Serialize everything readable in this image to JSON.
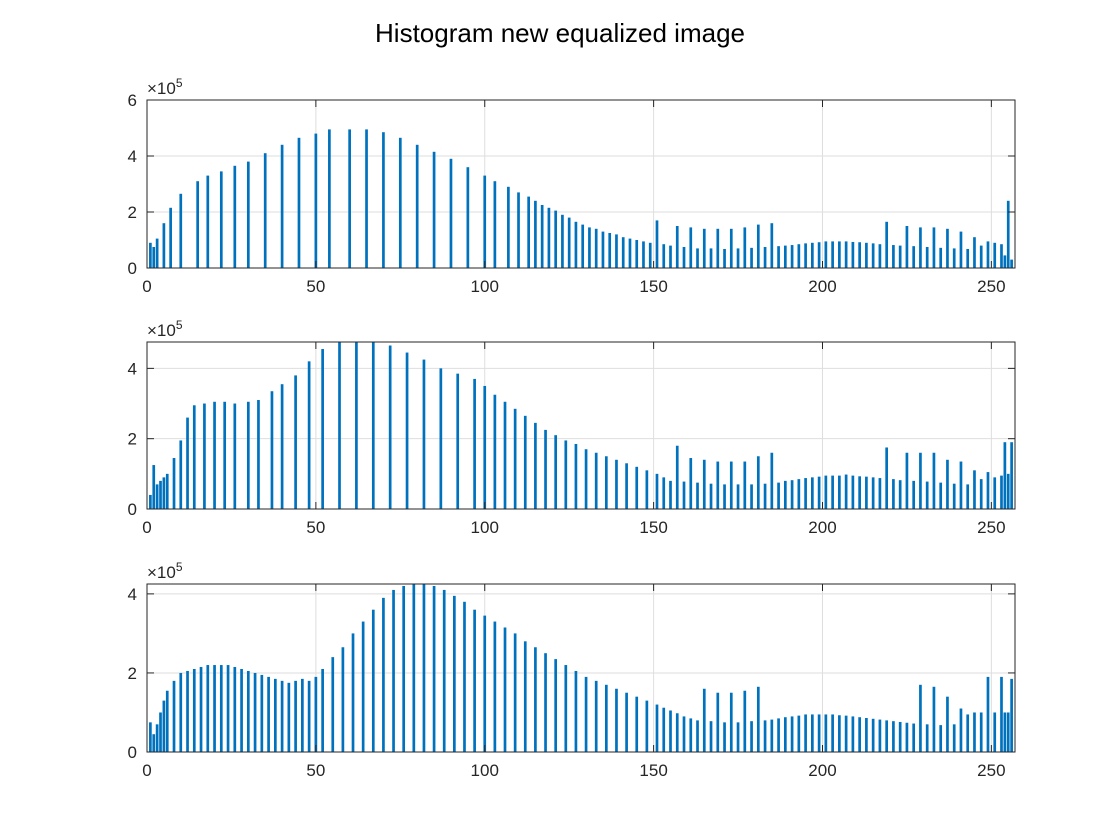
{
  "figure": {
    "title": "Histogram new equalized image",
    "bar_color": "#0072BD",
    "grid_color": "#dedede",
    "axis_color": "#262626"
  },
  "chart_data": [
    {
      "type": "bar",
      "title": "",
      "xlabel": "",
      "ylabel": "",
      "xlim": [
        0,
        257
      ],
      "ylim": [
        0,
        600000
      ],
      "xticks": [
        0,
        50,
        100,
        150,
        200,
        250
      ],
      "yticks": [
        0,
        200000,
        400000,
        600000
      ],
      "ytick_labels": [
        "0",
        "2",
        "4",
        "6"
      ],
      "y_exponent": "×10",
      "y_exponent_power": "5",
      "grid": true,
      "x": [
        1,
        2,
        3,
        5,
        7,
        10,
        15,
        18,
        22,
        26,
        30,
        35,
        40,
        45,
        50,
        54,
        60,
        65,
        70,
        75,
        80,
        85,
        90,
        95,
        100,
        103,
        107,
        110,
        113,
        115,
        117,
        119,
        121,
        123,
        125,
        127,
        129,
        131,
        133,
        135,
        137,
        139,
        141,
        143,
        145,
        147,
        149,
        151,
        153,
        155,
        157,
        159,
        161,
        163,
        165,
        167,
        169,
        171,
        173,
        175,
        177,
        179,
        181,
        183,
        185,
        187,
        189,
        191,
        193,
        195,
        197,
        199,
        201,
        203,
        205,
        207,
        209,
        211,
        213,
        215,
        217,
        219,
        221,
        223,
        225,
        227,
        229,
        231,
        233,
        235,
        237,
        239,
        241,
        243,
        245,
        247,
        249,
        251,
        253,
        254,
        255,
        256
      ],
      "values": [
        90000,
        75000,
        105000,
        160000,
        215000,
        265000,
        310000,
        330000,
        345000,
        365000,
        380000,
        410000,
        440000,
        465000,
        480000,
        495000,
        495000,
        495000,
        485000,
        465000,
        440000,
        415000,
        390000,
        360000,
        330000,
        310000,
        290000,
        270000,
        255000,
        240000,
        225000,
        215000,
        205000,
        190000,
        180000,
        165000,
        155000,
        145000,
        140000,
        130000,
        125000,
        120000,
        110000,
        105000,
        100000,
        95000,
        90000,
        170000,
        85000,
        80000,
        150000,
        75000,
        145000,
        70000,
        140000,
        70000,
        140000,
        68000,
        140000,
        70000,
        145000,
        72000,
        155000,
        75000,
        160000,
        78000,
        80000,
        82000,
        85000,
        88000,
        90000,
        92000,
        95000,
        95000,
        95000,
        95000,
        93000,
        92000,
        90000,
        88000,
        85000,
        165000,
        82000,
        80000,
        150000,
        78000,
        145000,
        75000,
        145000,
        72000,
        140000,
        70000,
        130000,
        68000,
        110000,
        80000,
        95000,
        90000,
        85000,
        45000,
        240000,
        30000
      ]
    },
    {
      "type": "bar",
      "title": "",
      "xlabel": "",
      "ylabel": "",
      "xlim": [
        0,
        257
      ],
      "ylim": [
        0,
        475000
      ],
      "xticks": [
        0,
        50,
        100,
        150,
        200,
        250
      ],
      "yticks": [
        0,
        200000,
        400000
      ],
      "ytick_labels": [
        "0",
        "2",
        "4"
      ],
      "y_exponent": "×10",
      "y_exponent_power": "5",
      "grid": true,
      "x": [
        1,
        2,
        3,
        4,
        5,
        6,
        8,
        10,
        12,
        14,
        17,
        20,
        23,
        26,
        30,
        33,
        37,
        40,
        44,
        48,
        52,
        57,
        62,
        67,
        72,
        77,
        82,
        87,
        92,
        97,
        100,
        103,
        106,
        109,
        112,
        115,
        118,
        121,
        124,
        127,
        130,
        133,
        136,
        139,
        142,
        145,
        148,
        151,
        153,
        155,
        157,
        159,
        161,
        163,
        165,
        167,
        169,
        171,
        173,
        175,
        177,
        179,
        181,
        183,
        185,
        187,
        189,
        191,
        193,
        195,
        197,
        199,
        201,
        203,
        205,
        207,
        209,
        211,
        213,
        215,
        217,
        219,
        221,
        223,
        225,
        227,
        229,
        231,
        233,
        235,
        237,
        239,
        241,
        243,
        245,
        247,
        249,
        251,
        253,
        254,
        255,
        256
      ],
      "values": [
        40000,
        125000,
        70000,
        80000,
        90000,
        100000,
        145000,
        195000,
        260000,
        295000,
        300000,
        305000,
        305000,
        300000,
        305000,
        310000,
        335000,
        355000,
        380000,
        420000,
        455000,
        475000,
        475000,
        475000,
        465000,
        445000,
        425000,
        400000,
        385000,
        370000,
        350000,
        325000,
        305000,
        285000,
        265000,
        245000,
        225000,
        210000,
        195000,
        185000,
        170000,
        160000,
        150000,
        140000,
        130000,
        120000,
        110000,
        100000,
        90000,
        80000,
        180000,
        78000,
        145000,
        75000,
        140000,
        72000,
        135000,
        70000,
        135000,
        70000,
        135000,
        70000,
        150000,
        72000,
        160000,
        75000,
        80000,
        82000,
        85000,
        88000,
        90000,
        92000,
        95000,
        95000,
        95000,
        98000,
        95000,
        93000,
        92000,
        90000,
        88000,
        175000,
        85000,
        82000,
        160000,
        80000,
        160000,
        78000,
        160000,
        75000,
        140000,
        72000,
        135000,
        70000,
        110000,
        85000,
        105000,
        90000,
        95000,
        190000,
        100000,
        190000
      ]
    },
    {
      "type": "bar",
      "title": "",
      "xlabel": "",
      "ylabel": "",
      "xlim": [
        0,
        257
      ],
      "ylim": [
        0,
        425000
      ],
      "xticks": [
        0,
        50,
        100,
        150,
        200,
        250
      ],
      "yticks": [
        0,
        200000,
        400000
      ],
      "ytick_labels": [
        "0",
        "2",
        "4"
      ],
      "y_exponent": "×10",
      "y_exponent_power": "5",
      "grid": true,
      "x": [
        1,
        2,
        3,
        4,
        5,
        6,
        8,
        10,
        12,
        14,
        16,
        18,
        20,
        22,
        24,
        26,
        28,
        30,
        32,
        34,
        36,
        38,
        40,
        42,
        44,
        46,
        48,
        50,
        52,
        55,
        58,
        61,
        64,
        67,
        70,
        73,
        76,
        79,
        82,
        85,
        88,
        91,
        94,
        97,
        100,
        103,
        106,
        109,
        112,
        115,
        118,
        121,
        124,
        127,
        130,
        133,
        136,
        139,
        142,
        145,
        148,
        151,
        153,
        155,
        157,
        159,
        161,
        163,
        165,
        167,
        169,
        171,
        173,
        175,
        177,
        179,
        181,
        183,
        185,
        187,
        189,
        191,
        193,
        195,
        197,
        199,
        201,
        203,
        205,
        207,
        209,
        211,
        213,
        215,
        217,
        219,
        221,
        223,
        225,
        227,
        229,
        231,
        233,
        235,
        237,
        239,
        241,
        243,
        245,
        247,
        249,
        251,
        253,
        254,
        255,
        256
      ],
      "values": [
        75000,
        45000,
        70000,
        100000,
        130000,
        155000,
        180000,
        200000,
        205000,
        210000,
        215000,
        220000,
        220000,
        220000,
        220000,
        215000,
        210000,
        205000,
        200000,
        195000,
        190000,
        185000,
        180000,
        175000,
        180000,
        185000,
        180000,
        190000,
        210000,
        240000,
        265000,
        300000,
        330000,
        360000,
        390000,
        410000,
        420000,
        425000,
        425000,
        420000,
        410000,
        395000,
        380000,
        360000,
        345000,
        330000,
        315000,
        300000,
        280000,
        265000,
        250000,
        235000,
        220000,
        205000,
        190000,
        180000,
        170000,
        160000,
        150000,
        140000,
        130000,
        120000,
        112000,
        105000,
        98000,
        90000,
        85000,
        80000,
        160000,
        78000,
        150000,
        75000,
        150000,
        75000,
        155000,
        78000,
        165000,
        80000,
        82000,
        85000,
        88000,
        90000,
        92000,
        95000,
        95000,
        95000,
        95000,
        95000,
        93000,
        92000,
        90000,
        88000,
        86000,
        84000,
        82000,
        80000,
        78000,
        76000,
        74000,
        72000,
        170000,
        70000,
        165000,
        68000,
        140000,
        70000,
        110000,
        95000,
        100000,
        100000,
        190000,
        100000,
        190000,
        100000,
        100000,
        185000
      ]
    }
  ]
}
